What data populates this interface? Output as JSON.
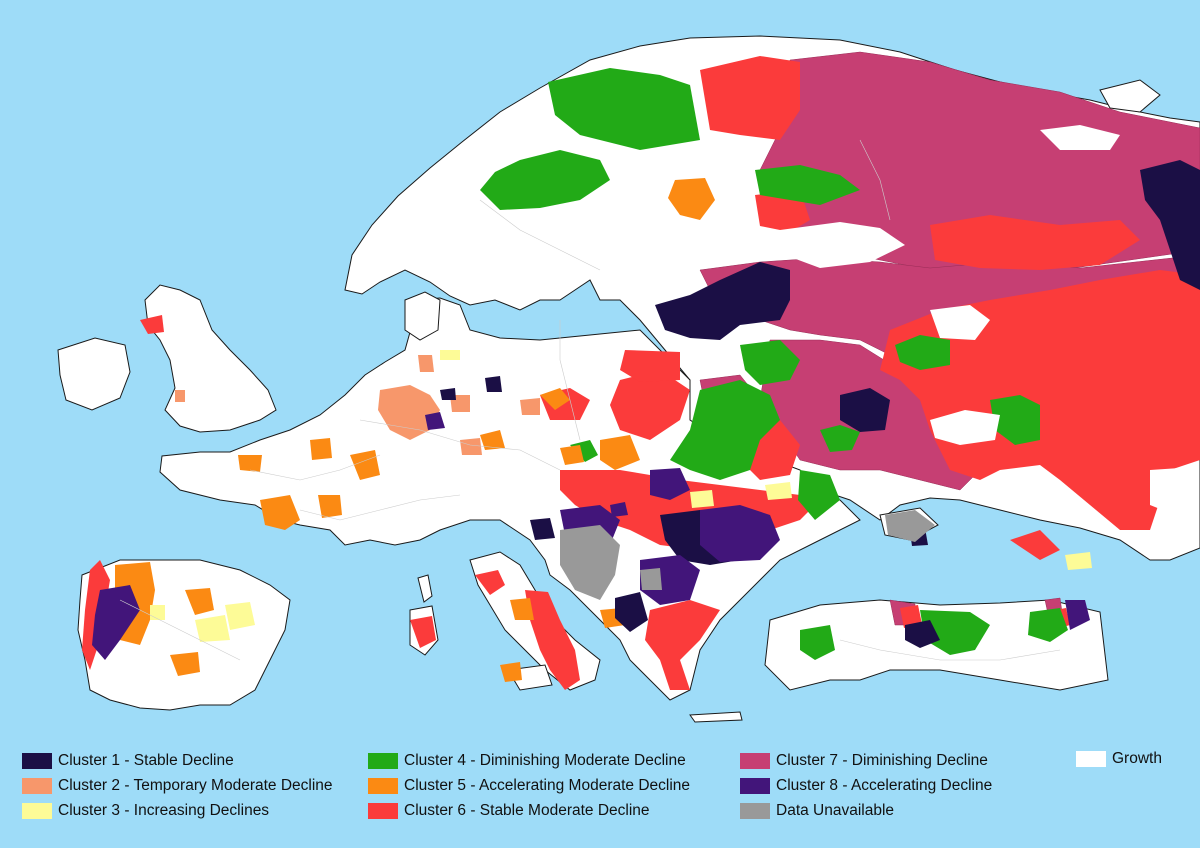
{
  "colors": {
    "sea": "#9edcf8",
    "growth": "#ffffff",
    "border": "#b9b9b9",
    "coast": "#1a1a1a",
    "c1": "#1b0f45",
    "c2": "#f7976b",
    "c3": "#fdfb97",
    "c4": "#22aa17",
    "c5": "#fb8a13",
    "c6": "#fb3b3b",
    "c7": "#c63f73",
    "c8": "#42157a",
    "na": "#999999"
  },
  "legend": [
    {
      "key": "c1",
      "label": "Cluster 1 - Stable Decline"
    },
    {
      "key": "c2",
      "label": "Cluster 2 - Temporary Moderate Decline"
    },
    {
      "key": "c3",
      "label": "Cluster 3 - Increasing Declines"
    },
    {
      "key": "c4",
      "label": "Cluster 4 - Diminishing Moderate Decline"
    },
    {
      "key": "c5",
      "label": "Cluster 5 - Accelerating Moderate Decline"
    },
    {
      "key": "c6",
      "label": "Cluster 6 - Stable Moderate Decline"
    },
    {
      "key": "c7",
      "label": "Cluster 7 - Diminishing Decline"
    },
    {
      "key": "c8",
      "label": "Cluster 8 - Accelerating Decline"
    },
    {
      "key": "na",
      "label": "Data Unavailable"
    },
    {
      "key": "growth",
      "label": "Growth"
    }
  ]
}
